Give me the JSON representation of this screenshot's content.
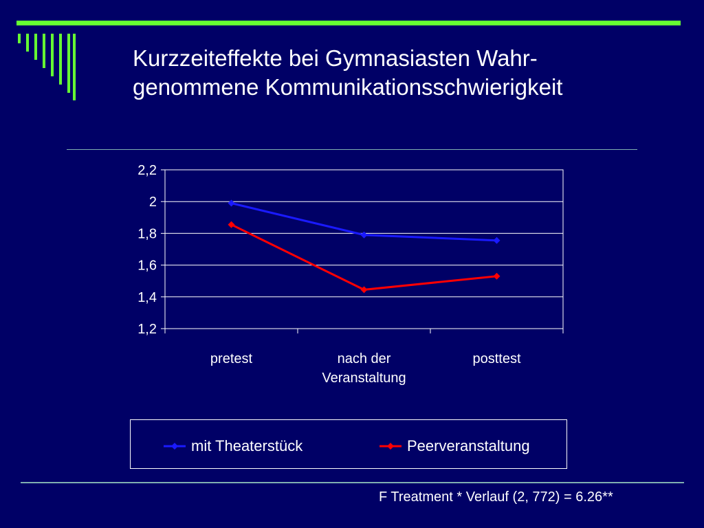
{
  "slide": {
    "title_line1": "Kurzzeiteffekte bei Gymnasiasten Wahr-",
    "title_line2": "genommene Kommunikationsschwierigkeit",
    "footnote": "F Treatment * Verlauf (2, 772) = 6.26**",
    "colors": {
      "background": "#000066",
      "accent": "#66ff33",
      "series1": "#1a1aff",
      "series2": "#ff0000"
    }
  },
  "chart_data": {
    "type": "line",
    "categories": [
      "pretest",
      [
        "nach der",
        "Veranstaltung"
      ],
      "posttest"
    ],
    "series": [
      {
        "name": "mit Theaterstück",
        "values": [
          1.99,
          1.79,
          1.755
        ],
        "color": "#1a1aff",
        "marker": "diamond"
      },
      {
        "name": "Peerveranstaltung",
        "values": [
          1.855,
          1.445,
          1.53
        ],
        "color": "#ff0000",
        "marker": "diamond"
      }
    ],
    "ylim": [
      1.2,
      2.2
    ],
    "yticks": [
      "1,2",
      "1,4",
      "1,6",
      "1,8",
      "2",
      "2,2"
    ],
    "ytick_values": [
      1.2,
      1.4,
      1.6,
      1.8,
      2.0,
      2.2
    ],
    "grid": true,
    "legend_position": "bottom"
  }
}
